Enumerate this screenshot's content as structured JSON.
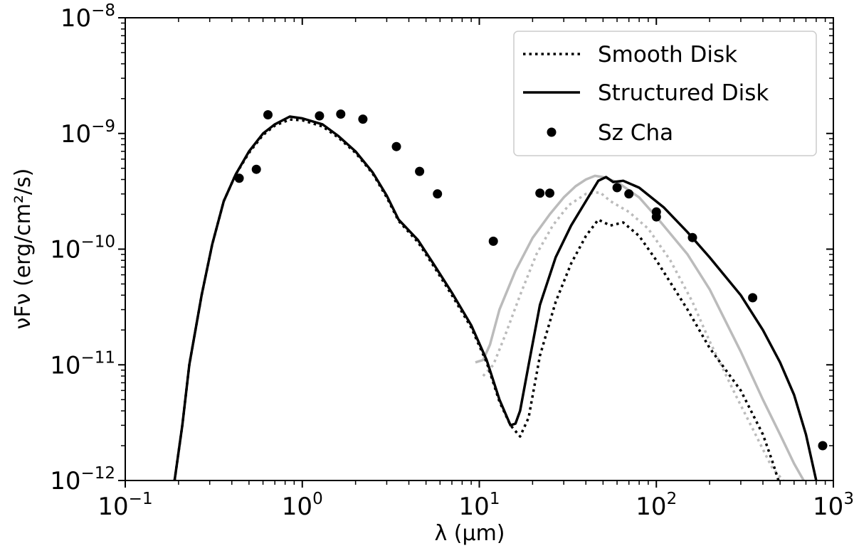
{
  "chart_data": {
    "type": "line",
    "title": "",
    "xlabel": "λ (μm)",
    "ylabel": "νFν (erg/cm²/s)",
    "xscale": "log",
    "yscale": "log",
    "xlim": [
      0.1,
      1000
    ],
    "ylim": [
      1e-12,
      1e-08
    ],
    "x_ticks": [
      {
        "value": 0.1,
        "base": "10",
        "exp": "−1"
      },
      {
        "value": 1,
        "base": "10",
        "exp": "0"
      },
      {
        "value": 10,
        "base": "10",
        "exp": "1"
      },
      {
        "value": 100,
        "base": "10",
        "exp": "2"
      },
      {
        "value": 1000,
        "base": "10",
        "exp": "3"
      }
    ],
    "y_ticks": [
      {
        "value": 1e-12,
        "base": "10",
        "exp": "−12"
      },
      {
        "value": 1e-11,
        "base": "10",
        "exp": "−11"
      },
      {
        "value": 1e-10,
        "base": "10",
        "exp": "−10"
      },
      {
        "value": 1e-09,
        "base": "10",
        "exp": "−9"
      },
      {
        "value": 1e-08,
        "base": "10",
        "exp": "−8"
      }
    ],
    "legend_position": "top-right",
    "legend": [
      {
        "label": "Smooth Disk",
        "style": "dotted"
      },
      {
        "label": "Structured Disk",
        "style": "solid"
      },
      {
        "label": "Sz Cha",
        "style": "marker"
      }
    ],
    "series": [
      {
        "name": "Structured Disk",
        "color": "#000000",
        "dash": "solid",
        "points": [
          [
            0.19,
            1e-12
          ],
          [
            0.21,
            3e-12
          ],
          [
            0.23,
            1e-11
          ],
          [
            0.27,
            4e-11
          ],
          [
            0.31,
            1.1e-10
          ],
          [
            0.36,
            2.6e-10
          ],
          [
            0.42,
            4.4e-10
          ],
          [
            0.5,
            7e-10
          ],
          [
            0.6,
            1e-09
          ],
          [
            0.7,
            1.2e-09
          ],
          [
            0.85,
            1.4e-09
          ],
          [
            1.0,
            1.35e-09
          ],
          [
            1.3,
            1.2e-09
          ],
          [
            1.6,
            9.5e-10
          ],
          [
            2.0,
            7e-10
          ],
          [
            2.5,
            4.6e-10
          ],
          [
            3.0,
            2.9e-10
          ],
          [
            3.5,
            1.8e-10
          ],
          [
            4.5,
            1.2e-10
          ],
          [
            5.5,
            7.5e-11
          ],
          [
            7,
            4.2e-11
          ],
          [
            9,
            2.2e-11
          ],
          [
            11,
            1.1e-11
          ],
          [
            13,
            5e-12
          ],
          [
            15,
            3e-12
          ],
          [
            16,
            3.1e-12
          ],
          [
            17,
            4e-12
          ],
          [
            19,
            1e-11
          ],
          [
            22,
            3.3e-11
          ],
          [
            27,
            8.5e-11
          ],
          [
            33,
            1.6e-10
          ],
          [
            40,
            2.6e-10
          ],
          [
            47,
            3.9e-10
          ],
          [
            52,
            4.2e-10
          ],
          [
            57,
            3.8e-10
          ],
          [
            65,
            3.9e-10
          ],
          [
            80,
            3.4e-10
          ],
          [
            110,
            2.3e-10
          ],
          [
            150,
            1.4e-10
          ],
          [
            200,
            8.5e-11
          ],
          [
            300,
            4e-11
          ],
          [
            400,
            2e-11
          ],
          [
            500,
            1.05e-11
          ],
          [
            600,
            5.5e-12
          ],
          [
            700,
            2.5e-12
          ],
          [
            800,
            1e-12
          ]
        ]
      },
      {
        "name": "Smooth Disk",
        "color": "#000000",
        "dash": "dotted",
        "points": [
          [
            0.19,
            1e-12
          ],
          [
            0.21,
            3e-12
          ],
          [
            0.23,
            1e-11
          ],
          [
            0.27,
            4e-11
          ],
          [
            0.31,
            1.1e-10
          ],
          [
            0.36,
            2.6e-10
          ],
          [
            0.42,
            4.4e-10
          ],
          [
            0.5,
            6.8e-10
          ],
          [
            0.6,
            9.7e-10
          ],
          [
            0.7,
            1.17e-09
          ],
          [
            0.85,
            1.32e-09
          ],
          [
            1.0,
            1.3e-09
          ],
          [
            1.3,
            1.15e-09
          ],
          [
            1.6,
            9.2e-10
          ],
          [
            2.0,
            6.8e-10
          ],
          [
            2.5,
            4.5e-10
          ],
          [
            3.0,
            2.8e-10
          ],
          [
            3.5,
            1.75e-10
          ],
          [
            4.5,
            1.15e-10
          ],
          [
            5.5,
            7.2e-11
          ],
          [
            7,
            4e-11
          ],
          [
            9,
            2.1e-11
          ],
          [
            11,
            1.05e-11
          ],
          [
            13,
            4.8e-12
          ],
          [
            15,
            3e-12
          ],
          [
            17,
            2.4e-12
          ],
          [
            19,
            3.5e-12
          ],
          [
            22,
            1.2e-11
          ],
          [
            27,
            3.5e-11
          ],
          [
            33,
            7.5e-11
          ],
          [
            40,
            1.3e-10
          ],
          [
            47,
            1.8e-10
          ],
          [
            55,
            1.6e-10
          ],
          [
            65,
            1.7e-10
          ],
          [
            80,
            1.3e-10
          ],
          [
            100,
            8e-11
          ],
          [
            150,
            3e-11
          ],
          [
            200,
            1.4e-11
          ],
          [
            300,
            6e-12
          ],
          [
            400,
            2.5e-12
          ],
          [
            450,
            1.5e-12
          ],
          [
            490,
            1e-12
          ]
        ]
      },
      {
        "name": "",
        "color": "#bbbbbb",
        "dash": "solid",
        "points": [
          [
            9.5,
            1.05e-11
          ],
          [
            10.5,
            1.1e-11
          ],
          [
            11.5,
            1.5e-11
          ],
          [
            13,
            3e-11
          ],
          [
            16,
            6.5e-11
          ],
          [
            20,
            1.25e-10
          ],
          [
            25,
            2e-10
          ],
          [
            30,
            2.8e-10
          ],
          [
            35,
            3.5e-10
          ],
          [
            40,
            4e-10
          ],
          [
            45,
            4.3e-10
          ],
          [
            50,
            4.2e-10
          ],
          [
            60,
            3.8e-10
          ],
          [
            80,
            2.8e-10
          ],
          [
            100,
            1.9e-10
          ],
          [
            150,
            9e-11
          ],
          [
            200,
            4.5e-11
          ],
          [
            300,
            1.3e-11
          ],
          [
            400,
            5e-12
          ],
          [
            500,
            2.5e-12
          ],
          [
            600,
            1.4e-12
          ],
          [
            680,
            1e-12
          ]
        ]
      },
      {
        "name": "",
        "color": "#bbbbbb",
        "dash": "dotted",
        "points": [
          [
            10.5,
            8e-12
          ],
          [
            12,
            1e-11
          ],
          [
            14,
            1.8e-11
          ],
          [
            17,
            4e-11
          ],
          [
            21,
            9e-11
          ],
          [
            26,
            1.6e-10
          ],
          [
            32,
            2.4e-10
          ],
          [
            40,
            3e-10
          ],
          [
            48,
            3.1e-10
          ],
          [
            55,
            2.6e-10
          ],
          [
            70,
            2.1e-10
          ],
          [
            90,
            1.5e-10
          ],
          [
            120,
            8e-11
          ],
          [
            160,
            3.5e-11
          ],
          [
            200,
            1.6e-11
          ],
          [
            280,
            5.5e-12
          ],
          [
            350,
            2.8e-12
          ],
          [
            450,
            1.3e-12
          ],
          [
            520,
            1e-12
          ]
        ]
      }
    ],
    "scatter": {
      "name": "Sz Cha",
      "color": "#000000",
      "points": [
        [
          0.44,
          4.1e-10
        ],
        [
          0.55,
          4.9e-10
        ],
        [
          0.64,
          1.45e-09
        ],
        [
          1.25,
          1.42e-09
        ],
        [
          1.65,
          1.47e-09
        ],
        [
          2.2,
          1.33e-09
        ],
        [
          3.4,
          7.7e-10
        ],
        [
          4.6,
          4.7e-10
        ],
        [
          5.8,
          3e-10
        ],
        [
          12,
          1.17e-10
        ],
        [
          22,
          3.05e-10
        ],
        [
          25,
          3.05e-10
        ],
        [
          60,
          3.4e-10
        ],
        [
          70,
          3e-10
        ],
        [
          100,
          2.1e-10
        ],
        [
          100,
          1.9e-10
        ],
        [
          160,
          1.26e-10
        ],
        [
          350,
          3.8e-11
        ],
        [
          870,
          2e-12
        ]
      ]
    }
  }
}
